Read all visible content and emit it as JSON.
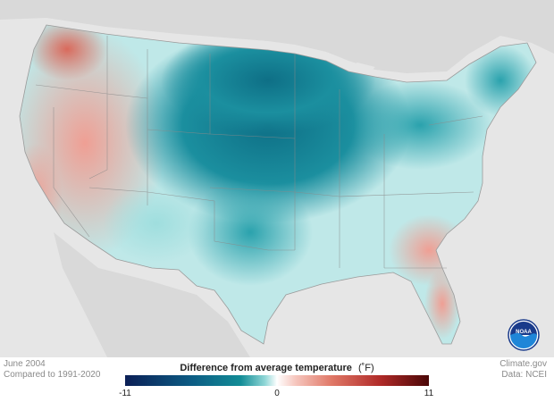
{
  "map": {
    "footer_left": [
      "June 2004",
      "Compared to 1991-2020"
    ],
    "footer_right": [
      "Climate.gov",
      "Data: NCEI"
    ],
    "legend": {
      "title": "Difference from average temperature",
      "unit": "(˚F)",
      "min_label": "-11",
      "mid_label": "0",
      "max_label": "11",
      "colors": {
        "cold": "#0b1f56",
        "neutral": "#ffffff",
        "warm": "#4a0707"
      }
    },
    "logo": "NOAA",
    "region_anomalies": [
      {
        "region": "Pacific Northwest",
        "anomaly_f": 3
      },
      {
        "region": "California/Great Basin",
        "anomaly_f": 1.5
      },
      {
        "region": "Northern Plains",
        "anomaly_f": -6
      },
      {
        "region": "Upper Midwest",
        "anomaly_f": -7
      },
      {
        "region": "Southern Plains",
        "anomaly_f": -4
      },
      {
        "region": "Great Lakes",
        "anomaly_f": -3
      },
      {
        "region": "Northeast",
        "anomaly_f": -3
      },
      {
        "region": "Southeast",
        "anomaly_f": 1.5
      },
      {
        "region": "Florida",
        "anomaly_f": 2
      }
    ]
  }
}
